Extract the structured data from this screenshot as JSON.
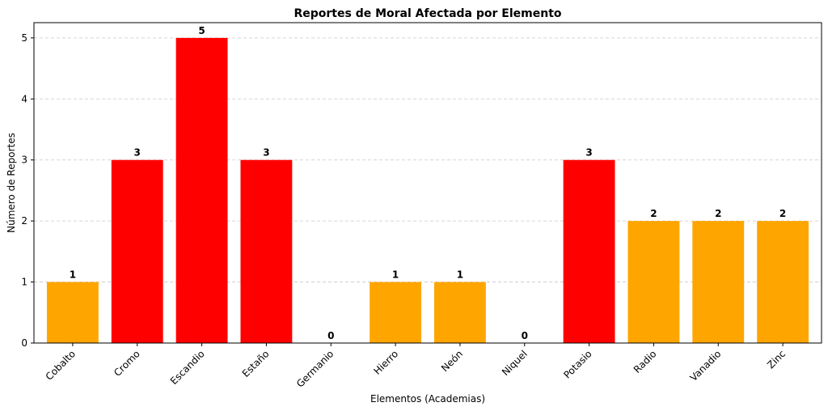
{
  "chart_data": {
    "type": "bar",
    "title": "Reportes de Moral Afectada por Elemento",
    "xlabel": "Elementos (Academias)",
    "ylabel": "Número de Reportes",
    "categories": [
      "Cobalto",
      "Cromo",
      "Escandio",
      "Estaño",
      "Germanio",
      "Hierro",
      "Neón",
      "Niquel",
      "Potasio",
      "Radio",
      "Vanadio",
      "Zinc"
    ],
    "values": [
      1,
      3,
      5,
      3,
      0,
      1,
      1,
      0,
      3,
      2,
      2,
      2
    ],
    "bar_colors": [
      "#FFA500",
      "#FF0000",
      "#FF0000",
      "#FF0000",
      "#FFA500",
      "#FFA500",
      "#FFA500",
      "#FFA500",
      "#FF0000",
      "#FFA500",
      "#FFA500",
      "#FFA500"
    ],
    "ylim": [
      0,
      5.25
    ],
    "yticks": [
      0,
      1,
      2,
      3,
      4,
      5
    ],
    "grid": "y-dashed",
    "data_labels": true
  }
}
